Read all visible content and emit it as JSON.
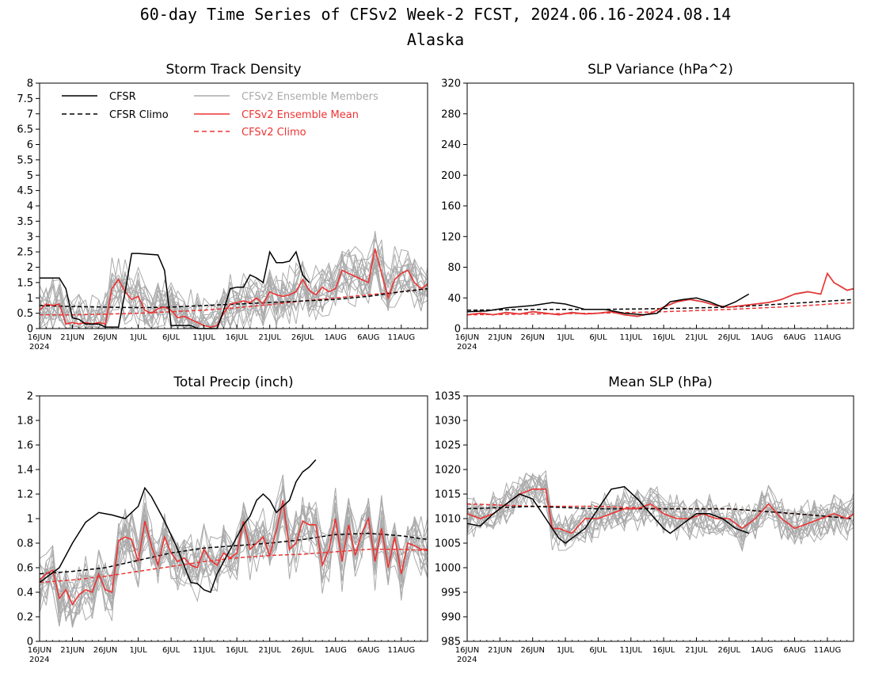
{
  "header": {
    "title": "60-day Time Series of CFSv2 Week-2 FCST, 2024.06.16-2024.08.14",
    "subtitle": "Alaska"
  },
  "legend": {
    "cfsr": "CFSR",
    "cfsr_climo": "CFSR Climo",
    "members": "CFSv2 Ensemble Members",
    "ens_mean": "CFSv2 Ensemble Mean",
    "cfsv2_climo": "CFSv2 Climo"
  },
  "colors": {
    "cfsr": "#000000",
    "members": "#aaaaaa",
    "ens_mean": "#ee3333",
    "cfsv2_climo": "#ee3333"
  },
  "x_axis": {
    "tick_days": [
      0,
      5,
      10,
      15,
      20,
      25,
      30,
      35,
      40,
      45,
      50,
      55
    ],
    "tick_labels": [
      "16JUN",
      "21JUN",
      "26JUN",
      "1JUL",
      "6JUL",
      "11JUL",
      "16JUL",
      "21JUL",
      "26JUL",
      "1AUG",
      "6AUG",
      "11AUG"
    ],
    "year_label": "2024",
    "range_days": [
      0,
      59
    ]
  },
  "chart_data": [
    {
      "type": "line",
      "title": "Storm Track Density",
      "ylim": [
        0,
        8
      ],
      "yticks": [
        0,
        0.5,
        1,
        1.5,
        2,
        2.5,
        3,
        3.5,
        4,
        4.5,
        5,
        5.5,
        6,
        6.5,
        7,
        7.5,
        8
      ],
      "ytick_labels": [
        "0",
        "0.5",
        "1",
        "1.5",
        "2",
        "2.5",
        "3",
        "3.5",
        "4",
        "4.5",
        "5",
        "5.5",
        "6",
        "6.5",
        "7",
        "7.5",
        "8"
      ],
      "series": [
        {
          "name": "CFSR",
          "role": "cfsr",
          "x": [
            0,
            3,
            4,
            5,
            6,
            7,
            9,
            10,
            12,
            13,
            14,
            15,
            18,
            19,
            20,
            21,
            22,
            23,
            24,
            27,
            28,
            29,
            30,
            31,
            32,
            33,
            34,
            35,
            36,
            37,
            38,
            39,
            40,
            41
          ],
          "y": [
            1.65,
            1.65,
            1.3,
            0.35,
            0.3,
            0.15,
            0.15,
            0.05,
            0.05,
            1.2,
            2.45,
            2.45,
            2.4,
            1.9,
            0.1,
            0.1,
            0.1,
            0.1,
            0.0,
            0.0,
            0.6,
            1.3,
            1.35,
            1.35,
            1.75,
            1.65,
            1.5,
            2.5,
            2.15,
            2.15,
            2.2,
            2.5,
            1.75,
            1.5
          ]
        },
        {
          "name": "CFSR Climo",
          "role": "cfsr_climo",
          "x": [
            0,
            5,
            10,
            15,
            20,
            25,
            30,
            35,
            40,
            45,
            50,
            55,
            59
          ],
          "y": [
            0.75,
            0.72,
            0.7,
            0.68,
            0.7,
            0.75,
            0.8,
            0.85,
            0.9,
            0.95,
            1.05,
            1.2,
            1.3
          ]
        },
        {
          "name": "CFSv2 Ensemble Mean",
          "role": "ens_mean",
          "x": [
            0,
            1,
            2,
            3,
            4,
            5,
            6,
            7,
            8,
            9,
            10,
            11,
            12,
            13,
            14,
            15,
            16,
            17,
            18,
            19,
            20,
            21,
            22,
            23,
            24,
            25,
            26,
            27,
            28,
            29,
            30,
            31,
            32,
            33,
            34,
            35,
            36,
            37,
            38,
            39,
            40,
            41,
            42,
            43,
            44,
            45,
            46,
            47,
            48,
            49,
            50,
            51,
            52,
            53,
            54,
            55,
            56,
            57,
            58,
            59
          ],
          "y": [
            0.6,
            0.8,
            0.75,
            0.8,
            0.15,
            0.2,
            0.15,
            0.2,
            0.15,
            0.2,
            0.15,
            1.3,
            1.6,
            1.2,
            0.95,
            1.05,
            0.6,
            0.5,
            0.65,
            0.7,
            0.6,
            0.35,
            0.4,
            0.3,
            0.2,
            0.1,
            0.05,
            0.1,
            0.5,
            0.8,
            0.85,
            0.9,
            0.85,
            1.0,
            0.8,
            1.2,
            1.1,
            1.05,
            1.1,
            1.2,
            1.6,
            1.25,
            1.1,
            1.35,
            1.2,
            1.3,
            1.9,
            1.8,
            1.7,
            1.6,
            1.5,
            2.6,
            1.8,
            1.0,
            1.6,
            1.8,
            1.9,
            1.5,
            1.3,
            1.45
          ]
        },
        {
          "name": "CFSv2 Climo",
          "role": "cfsv2_climo",
          "x": [
            0,
            5,
            10,
            15,
            20,
            25,
            30,
            35,
            40,
            45,
            50,
            55,
            59
          ],
          "y": [
            0.45,
            0.45,
            0.47,
            0.5,
            0.55,
            0.6,
            0.68,
            0.78,
            0.9,
            1.0,
            1.1,
            1.2,
            1.3
          ]
        }
      ],
      "members": {
        "count": 16,
        "spread": 0.7
      }
    },
    {
      "type": "line",
      "title": "SLP Variance (hPa^2)",
      "ylim": [
        0,
        320
      ],
      "yticks": [
        0,
        40,
        80,
        120,
        160,
        200,
        240,
        280,
        320
      ],
      "ytick_labels": [
        "0",
        "40",
        "80",
        "120",
        "160",
        "200",
        "240",
        "280",
        "320"
      ],
      "series": [
        {
          "name": "CFSR",
          "role": "cfsr",
          "x": [
            0,
            3,
            6,
            10,
            13,
            15,
            18,
            21,
            24,
            27,
            29,
            31,
            33,
            35,
            37,
            39,
            41,
            43
          ],
          "y": [
            22,
            23,
            27,
            30,
            34,
            32,
            25,
            25,
            20,
            18,
            20,
            35,
            38,
            40,
            35,
            28,
            35,
            45
          ]
        },
        {
          "name": "CFSR Climo",
          "role": "cfsr_climo",
          "x": [
            0,
            10,
            20,
            30,
            40,
            50,
            59
          ],
          "y": [
            24,
            25,
            25,
            26,
            28,
            33,
            38
          ]
        },
        {
          "name": "CFSv2 Ensemble Mean",
          "role": "ens_mean",
          "x": [
            0,
            2,
            4,
            6,
            8,
            10,
            12,
            14,
            16,
            18,
            20,
            22,
            24,
            26,
            28,
            30,
            32,
            34,
            36,
            38,
            40,
            42,
            44,
            46,
            48,
            50,
            52,
            54,
            55,
            56,
            57,
            58,
            59
          ],
          "y": [
            18,
            20,
            18,
            21,
            19,
            22,
            20,
            18,
            21,
            19,
            20,
            22,
            18,
            16,
            20,
            28,
            35,
            38,
            35,
            30,
            28,
            30,
            32,
            34,
            38,
            45,
            48,
            45,
            72,
            60,
            55,
            50,
            52
          ]
        },
        {
          "name": "CFSv2 Climo",
          "role": "cfsv2_climo",
          "x": [
            0,
            10,
            20,
            30,
            40,
            50,
            59
          ],
          "y": [
            18,
            19,
            20,
            22,
            25,
            29,
            34
          ]
        }
      ],
      "members": {
        "count": 16,
        "spread": 0.45
      }
    },
    {
      "type": "line",
      "title": "Total Precip (inch)",
      "ylim": [
        0,
        2
      ],
      "yticks": [
        0,
        0.2,
        0.4,
        0.6,
        0.8,
        1,
        1.2,
        1.4,
        1.6,
        1.8,
        2
      ],
      "ytick_labels": [
        "0",
        "0.2",
        "0.4",
        "0.6",
        "0.8",
        "1",
        "1.2",
        "1.4",
        "1.6",
        "1.8",
        "2"
      ],
      "series": [
        {
          "name": "CFSR",
          "role": "cfsr",
          "x": [
            0,
            3,
            5,
            7,
            9,
            11,
            13,
            15,
            16,
            17,
            19,
            21,
            23,
            24,
            25,
            26,
            27,
            29,
            31,
            32,
            33,
            34,
            35,
            36,
            37,
            38,
            39,
            40,
            41,
            42
          ],
          "y": [
            0.48,
            0.6,
            0.8,
            0.97,
            1.05,
            1.03,
            1.0,
            1.1,
            1.25,
            1.18,
            0.98,
            0.75,
            0.48,
            0.47,
            0.42,
            0.4,
            0.55,
            0.75,
            0.95,
            1.02,
            1.15,
            1.2,
            1.15,
            1.05,
            1.1,
            1.15,
            1.3,
            1.38,
            1.42,
            1.48
          ]
        },
        {
          "name": "CFSR Climo",
          "role": "cfsr_climo",
          "x": [
            0,
            5,
            10,
            15,
            20,
            25,
            30,
            35,
            40,
            45,
            50,
            55,
            59
          ],
          "y": [
            0.55,
            0.57,
            0.6,
            0.66,
            0.72,
            0.76,
            0.78,
            0.8,
            0.83,
            0.87,
            0.88,
            0.86,
            0.83
          ]
        },
        {
          "name": "CFSv2 Ensemble Mean",
          "role": "ens_mean",
          "x": [
            0,
            1,
            2,
            3,
            4,
            5,
            6,
            7,
            8,
            9,
            10,
            11,
            12,
            13,
            14,
            15,
            16,
            17,
            18,
            19,
            20,
            21,
            22,
            23,
            24,
            25,
            26,
            27,
            28,
            29,
            30,
            31,
            32,
            33,
            34,
            35,
            36,
            37,
            38,
            39,
            40,
            41,
            42,
            43,
            44,
            45,
            46,
            47,
            48,
            49,
            50,
            51,
            52,
            53,
            54,
            55,
            56,
            57,
            58,
            59
          ],
          "y": [
            0.5,
            0.55,
            0.58,
            0.35,
            0.42,
            0.3,
            0.38,
            0.42,
            0.4,
            0.55,
            0.42,
            0.4,
            0.82,
            0.85,
            0.83,
            0.65,
            0.98,
            0.78,
            0.62,
            0.85,
            0.72,
            0.65,
            0.68,
            0.62,
            0.6,
            0.75,
            0.66,
            0.62,
            0.72,
            0.68,
            0.72,
            0.98,
            0.75,
            0.8,
            0.85,
            0.7,
            0.9,
            1.15,
            0.75,
            0.8,
            0.98,
            0.95,
            0.95,
            0.62,
            0.75,
            1.0,
            0.65,
            0.95,
            0.7,
            0.88,
            1.0,
            0.65,
            0.92,
            0.6,
            0.85,
            0.55,
            0.8,
            0.78,
            0.75,
            0.75
          ]
        },
        {
          "name": "CFSv2 Climo",
          "role": "cfsv2_climo",
          "x": [
            0,
            5,
            10,
            15,
            20,
            25,
            30,
            35,
            40,
            45,
            50,
            55,
            59
          ],
          "y": [
            0.48,
            0.5,
            0.53,
            0.57,
            0.61,
            0.65,
            0.68,
            0.7,
            0.71,
            0.73,
            0.75,
            0.75,
            0.74
          ]
        }
      ],
      "members": {
        "count": 16,
        "spread": 0.18
      }
    },
    {
      "type": "line",
      "title": "Mean SLP (hPa)",
      "ylim": [
        985,
        1035
      ],
      "yticks": [
        985,
        990,
        995,
        1000,
        1005,
        1010,
        1015,
        1020,
        1025,
        1030,
        1035
      ],
      "ytick_labels": [
        "985",
        "990",
        "995",
        "1000",
        "1005",
        "1010",
        "1015",
        "1020",
        "1025",
        "1030",
        "1035"
      ],
      "series": [
        {
          "name": "CFSR",
          "role": "cfsr",
          "x": [
            0,
            2,
            4,
            6,
            8,
            10,
            12,
            14,
            15,
            17,
            18,
            20,
            22,
            24,
            26,
            28,
            30,
            31,
            33,
            35,
            37,
            39,
            41,
            43
          ],
          "y": [
            1009,
            1008.5,
            1011,
            1013,
            1015,
            1014,
            1010,
            1006,
            1005,
            1007,
            1008,
            1012,
            1016,
            1016.5,
            1014,
            1011,
            1008,
            1007,
            1009,
            1011,
            1011,
            1010,
            1008,
            1007
          ]
        },
        {
          "name": "CFSR Climo",
          "role": "cfsr_climo",
          "x": [
            0,
            10,
            20,
            30,
            40,
            50,
            59
          ],
          "y": [
            1012,
            1012.5,
            1012,
            1012,
            1012,
            1011,
            1010
          ]
        },
        {
          "name": "CFSv2 Ensemble Mean",
          "role": "ens_mean",
          "x": [
            0,
            2,
            4,
            6,
            8,
            10,
            12,
            13,
            14,
            16,
            18,
            20,
            22,
            24,
            26,
            28,
            30,
            32,
            34,
            36,
            38,
            40,
            42,
            44,
            46,
            48,
            50,
            52,
            54,
            56,
            58,
            59
          ],
          "y": [
            1011,
            1010,
            1011,
            1013,
            1015,
            1016,
            1016,
            1008,
            1008,
            1007,
            1010,
            1010,
            1011,
            1012,
            1012,
            1013,
            1011,
            1010,
            1010,
            1011,
            1010,
            1010,
            1008,
            1010,
            1013,
            1010,
            1008,
            1009,
            1010,
            1011,
            1010,
            1011
          ]
        },
        {
          "name": "CFSv2 Climo",
          "role": "cfsv2_climo",
          "x": [
            0,
            10,
            20,
            30,
            40,
            50,
            59
          ],
          "y": [
            1013,
            1012.5,
            1012.5,
            1012,
            1012,
            1011,
            1010
          ]
        }
      ],
      "members": {
        "count": 16,
        "spread": 3.2
      }
    }
  ]
}
